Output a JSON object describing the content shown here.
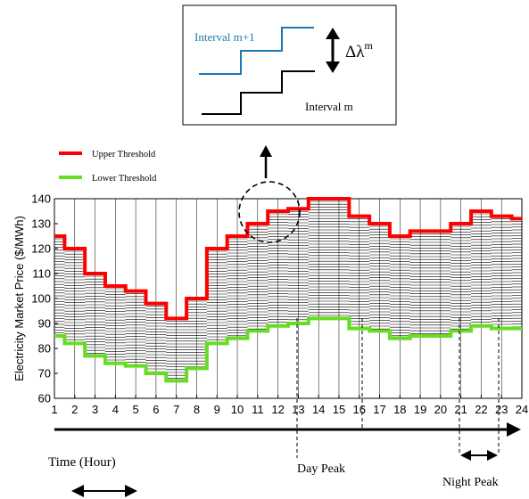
{
  "chart_data": {
    "type": "line",
    "ylabel": "Electricity Market Price ($/MWh)",
    "xlabel": "Time (Hour)",
    "x": [
      1,
      2,
      3,
      4,
      5,
      6,
      7,
      8,
      9,
      10,
      11,
      12,
      13,
      14,
      15,
      16,
      17,
      18,
      19,
      20,
      21,
      22,
      23,
      24
    ],
    "xlim": [
      1,
      24
    ],
    "ylim": [
      60,
      140
    ],
    "yticks": [
      60,
      70,
      80,
      90,
      100,
      110,
      120,
      130,
      140
    ],
    "series": [
      {
        "name": "Upper Threshold",
        "color": "#ff0000",
        "values": [
          125,
          120,
          110,
          105,
          103,
          98,
          92,
          100,
          120,
          125,
          130,
          135,
          136,
          140,
          140,
          133,
          130,
          125,
          127,
          127,
          130,
          135,
          133,
          132
        ]
      },
      {
        "name": "Lower Threshold",
        "color": "#66dd22",
        "values": [
          85,
          82,
          77,
          74,
          73,
          70,
          67,
          72,
          82,
          84,
          87,
          89,
          90,
          92,
          92,
          88,
          87,
          84,
          85,
          85,
          87,
          89,
          88,
          88
        ]
      }
    ],
    "legend": [
      "Upper Threshold",
      "Lower Threshold"
    ],
    "annotations": {
      "day_peak": "Day Peak",
      "night_peak": "Night Peak",
      "inset_upper": "Interval m+1",
      "inset_lower": "Interval m",
      "inset_delta": "Δλ",
      "inset_delta_sup": "m"
    }
  }
}
